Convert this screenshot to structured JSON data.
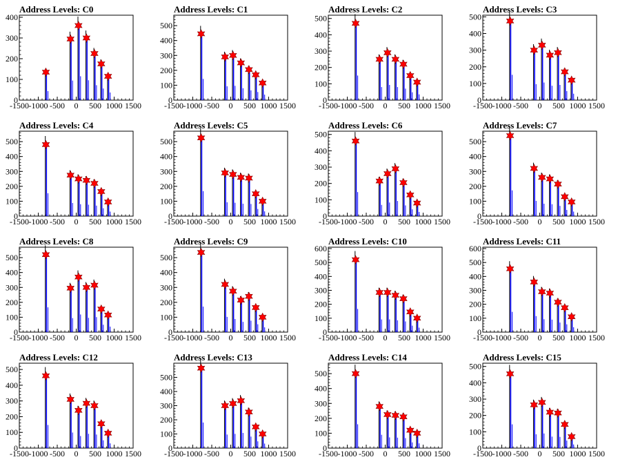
{
  "figure": {
    "panel_count": 16,
    "colors": {
      "histogram": "#0000ff",
      "histogram_secondary": "#000000",
      "marker": "#ff0000",
      "marker_outline": "#800000",
      "frame": "#000000"
    }
  },
  "chart_data": [
    {
      "type": "bar",
      "title": "Address Levels: C0",
      "xlim": [
        -1500,
        1500
      ],
      "ylim": [
        0,
        410
      ],
      "xticks": [
        -1500,
        -1000,
        -500,
        0,
        500,
        1000,
        1500
      ],
      "yticks": [
        0,
        100,
        200,
        300,
        400
      ],
      "peaks": {
        "x": [
          -800,
          -150,
          60,
          270,
          480,
          660,
          840
        ],
        "y": [
          135,
          295,
          360,
          300,
          225,
          175,
          115
        ]
      }
    },
    {
      "type": "bar",
      "title": "Address Levels: C1",
      "xlim": [
        -1500,
        1500
      ],
      "ylim": [
        0,
        570
      ],
      "xticks": [
        -1500,
        -1000,
        -500,
        0,
        500,
        1000,
        1500
      ],
      "yticks": [
        0,
        100,
        200,
        300,
        400,
        500
      ],
      "peaks": {
        "x": [
          -780,
          -150,
          60,
          270,
          480,
          660,
          840
        ],
        "y": [
          445,
          290,
          300,
          250,
          205,
          170,
          115
        ]
      }
    },
    {
      "type": "bar",
      "title": "Address Levels: C2",
      "xlim": [
        -1500,
        1500
      ],
      "ylim": [
        0,
        520
      ],
      "xticks": [
        -1500,
        -1000,
        -500,
        0,
        500,
        1000,
        1500
      ],
      "yticks": [
        0,
        100,
        200,
        300,
        400,
        500
      ],
      "peaks": {
        "x": [
          -780,
          -150,
          60,
          270,
          480,
          660,
          840
        ],
        "y": [
          470,
          250,
          290,
          250,
          220,
          150,
          110
        ]
      }
    },
    {
      "type": "bar",
      "title": "Address Levels: C3",
      "xlim": [
        -1500,
        1500
      ],
      "ylim": [
        0,
        510
      ],
      "xticks": [
        -1500,
        -1000,
        -500,
        0,
        500,
        1000,
        1500
      ],
      "yticks": [
        0,
        100,
        200,
        300,
        400,
        500
      ],
      "peaks": {
        "x": [
          -780,
          -150,
          60,
          270,
          480,
          660,
          840
        ],
        "y": [
          475,
          300,
          330,
          270,
          285,
          170,
          120
        ]
      }
    },
    {
      "type": "bar",
      "title": "Address Levels: C4",
      "xlim": [
        -1500,
        1500
      ],
      "ylim": [
        0,
        570
      ],
      "xticks": [
        -1500,
        -1000,
        -500,
        0,
        500,
        1000,
        1500
      ],
      "yticks": [
        0,
        100,
        200,
        300,
        400,
        500
      ],
      "peaks": {
        "x": [
          -800,
          -150,
          60,
          270,
          480,
          660,
          840
        ],
        "y": [
          480,
          275,
          250,
          240,
          220,
          165,
          95
        ]
      }
    },
    {
      "type": "bar",
      "title": "Address Levels: C5",
      "xlim": [
        -1500,
        1500
      ],
      "ylim": [
        0,
        570
      ],
      "xticks": [
        -1500,
        -1000,
        -500,
        0,
        500,
        1000,
        1500
      ],
      "yticks": [
        0,
        100,
        200,
        300,
        400,
        500
      ],
      "peaks": {
        "x": [
          -780,
          -150,
          60,
          270,
          480,
          660,
          840
        ],
        "y": [
          525,
          290,
          280,
          260,
          255,
          150,
          100
        ]
      }
    },
    {
      "type": "bar",
      "title": "Address Levels: C6",
      "xlim": [
        -1500,
        1500
      ],
      "ylim": [
        0,
        520
      ],
      "xticks": [
        -1500,
        -1000,
        -500,
        0,
        500,
        1000,
        1500
      ],
      "yticks": [
        0,
        100,
        200,
        300,
        400,
        500
      ],
      "peaks": {
        "x": [
          -780,
          -150,
          60,
          270,
          480,
          660,
          840
        ],
        "y": [
          460,
          215,
          260,
          290,
          205,
          130,
          80
        ]
      }
    },
    {
      "type": "bar",
      "title": "Address Levels: C7",
      "xlim": [
        -1500,
        1500
      ],
      "ylim": [
        0,
        570
      ],
      "xticks": [
        -1500,
        -1000,
        -500,
        0,
        500,
        1000,
        1500
      ],
      "yticks": [
        0,
        100,
        200,
        300,
        400,
        500
      ],
      "peaks": {
        "x": [
          -780,
          -150,
          60,
          270,
          480,
          660,
          840
        ],
        "y": [
          540,
          320,
          260,
          250,
          215,
          130,
          95
        ]
      }
    },
    {
      "type": "bar",
      "title": "Address Levels: C8",
      "xlim": [
        -1500,
        1500
      ],
      "ylim": [
        0,
        570
      ],
      "xticks": [
        -1500,
        -1000,
        -500,
        0,
        500,
        1000,
        1500
      ],
      "yticks": [
        0,
        100,
        200,
        300,
        400,
        500
      ],
      "peaks": {
        "x": [
          -800,
          -150,
          60,
          270,
          480,
          660,
          840
        ],
        "y": [
          520,
          295,
          370,
          300,
          315,
          155,
          115
        ]
      }
    },
    {
      "type": "bar",
      "title": "Address Levels: C9",
      "xlim": [
        -1500,
        1500
      ],
      "ylim": [
        0,
        570
      ],
      "xticks": [
        -1500,
        -1000,
        -500,
        0,
        500,
        1000,
        1500
      ],
      "yticks": [
        0,
        100,
        200,
        300,
        400,
        500
      ],
      "peaks": {
        "x": [
          -780,
          -150,
          60,
          270,
          480,
          660,
          840
        ],
        "y": [
          535,
          320,
          275,
          215,
          240,
          165,
          100
        ]
      }
    },
    {
      "type": "bar",
      "title": "Address Levels: C10",
      "xlim": [
        -1500,
        1500
      ],
      "ylim": [
        0,
        610
      ],
      "xticks": [
        -1500,
        -1000,
        -500,
        0,
        500,
        1000,
        1500
      ],
      "yticks": [
        0,
        100,
        200,
        300,
        400,
        500,
        600
      ],
      "peaks": {
        "x": [
          -780,
          -150,
          60,
          270,
          480,
          660,
          840
        ],
        "y": [
          520,
          285,
          285,
          265,
          240,
          145,
          100
        ]
      }
    },
    {
      "type": "bar",
      "title": "Address Levels: C11",
      "xlim": [
        -1500,
        1500
      ],
      "ylim": [
        0,
        610
      ],
      "xticks": [
        -1500,
        -1000,
        -500,
        0,
        500,
        1000,
        1500
      ],
      "yticks": [
        0,
        100,
        200,
        300,
        400,
        500,
        600
      ],
      "peaks": {
        "x": [
          -780,
          -150,
          60,
          270,
          480,
          660,
          840
        ],
        "y": [
          455,
          360,
          290,
          280,
          215,
          175,
          110
        ]
      }
    },
    {
      "type": "bar",
      "title": "Address Levels: C12",
      "xlim": [
        -1500,
        1500
      ],
      "ylim": [
        0,
        540
      ],
      "xticks": [
        -1500,
        -1000,
        -500,
        0,
        500,
        1000,
        1500
      ],
      "yticks": [
        0,
        100,
        200,
        300,
        400,
        500
      ],
      "peaks": {
        "x": [
          -800,
          -150,
          60,
          270,
          480,
          660,
          840
        ],
        "y": [
          460,
          310,
          240,
          285,
          270,
          155,
          95
        ]
      }
    },
    {
      "type": "bar",
      "title": "Address Levels: C13",
      "xlim": [
        -1500,
        1500
      ],
      "ylim": [
        0,
        600
      ],
      "xticks": [
        -1500,
        -1000,
        -500,
        0,
        500,
        1000,
        1500
      ],
      "yticks": [
        0,
        100,
        200,
        300,
        400,
        500
      ],
      "peaks": {
        "x": [
          -780,
          -150,
          60,
          270,
          480,
          660,
          840
        ],
        "y": [
          565,
          300,
          315,
          335,
          255,
          150,
          100
        ]
      }
    },
    {
      "type": "bar",
      "title": "Address Levels: C14",
      "xlim": [
        -1500,
        1500
      ],
      "ylim": [
        0,
        570
      ],
      "xticks": [
        -1500,
        -1000,
        -500,
        0,
        500,
        1000,
        1500
      ],
      "yticks": [
        0,
        100,
        200,
        300,
        400,
        500
      ],
      "peaks": {
        "x": [
          -780,
          -150,
          60,
          270,
          480,
          660,
          840
        ],
        "y": [
          500,
          280,
          225,
          220,
          210,
          120,
          100
        ]
      }
    },
    {
      "type": "bar",
      "title": "Address Levels: C15",
      "xlim": [
        -1500,
        1500
      ],
      "ylim": [
        0,
        520
      ],
      "xticks": [
        -1500,
        -1000,
        -500,
        0,
        500,
        1000,
        1500
      ],
      "yticks": [
        0,
        100,
        200,
        300,
        400,
        500
      ],
      "peaks": {
        "x": [
          -780,
          -150,
          60,
          270,
          480,
          660,
          840
        ],
        "y": [
          455,
          265,
          280,
          220,
          215,
          145,
          70
        ]
      }
    }
  ]
}
